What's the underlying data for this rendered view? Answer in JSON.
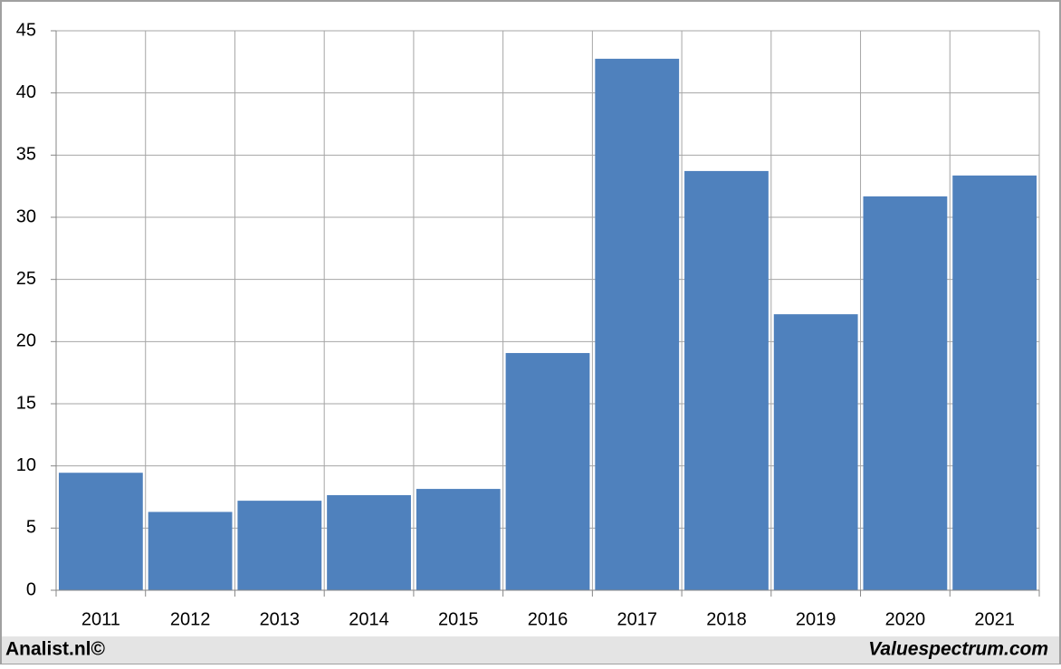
{
  "chart_data": {
    "type": "bar",
    "categories": [
      "2011",
      "2012",
      "2013",
      "2014",
      "2015",
      "2016",
      "2017",
      "2018",
      "2019",
      "2020",
      "2021"
    ],
    "values": [
      9.45,
      6.3,
      7.2,
      7.65,
      8.15,
      19.08,
      42.75,
      33.72,
      22.2,
      31.68,
      33.36
    ],
    "color": "#4f81bd",
    "ylim": [
      0,
      45
    ],
    "yticks": [
      0,
      5,
      10,
      15,
      20,
      25,
      30,
      35,
      40,
      45
    ],
    "grid": true,
    "credits": [
      "Analist.nl©",
      "Valuespectrum.com"
    ]
  }
}
